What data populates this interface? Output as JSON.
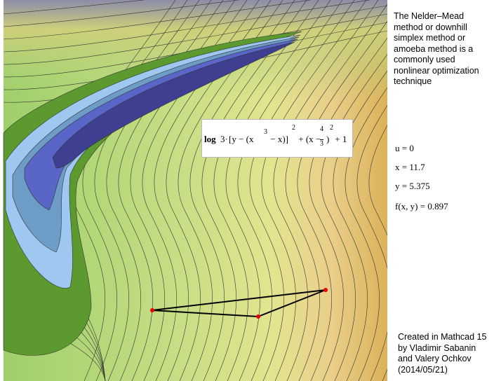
{
  "description": [
    "The Nelder–Mead",
    "method or downhill",
    "simplex method or",
    "amoeba method is a",
    "commonly used",
    "nonlinear optimization",
    "technique"
  ],
  "formula": [
    "log",
    "3·",
    "[y − (x",
    "3",
    " − x)]",
    "2",
    " + (x − ",
    "4",
    "3",
    ")",
    "2",
    " + 1"
  ],
  "variables": [
    "u = 0",
    "x = 11.7",
    "y = 5.375",
    "f(x, y) = 0.897"
  ],
  "credits": [
    "Created in Mathcad 15",
    "by Vladimir Sabanin",
    "and Valery Ochkov",
    "(2014/05/21)"
  ]
}
